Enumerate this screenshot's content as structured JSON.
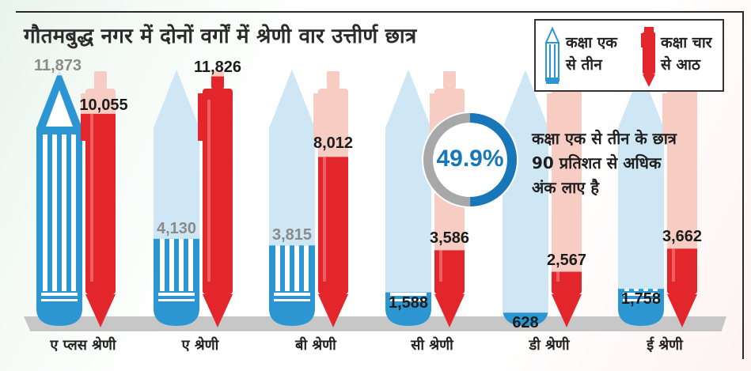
{
  "title": "गौतमबुद्ध नगर में दोनों वर्गों में श्रेणी वार उत्तीर्ण छात्र",
  "legend": {
    "pencil_label_line1": "कक्षा एक",
    "pencil_label_line2": "से तीन",
    "pen_label_line1": "कक्षा चार",
    "pen_label_line2": "से आठ"
  },
  "highlight": {
    "percent_text": "49.9%",
    "percent_value": 49.9,
    "note_line1": "कक्षा एक से तीन के छात्र",
    "note_line2": "90 प्रतिशत से अधिक",
    "note_line3": "अंक लाए है"
  },
  "colors": {
    "pencil_blue": "#2c96d2",
    "pencil_light": "#cfe6f4",
    "pen_red": "#e3262c",
    "pen_light": "#f7cdc3",
    "floor": "#c7c7c7",
    "donut_blue": "#1877b8",
    "donut_gray": "#a8a8a8"
  },
  "chart_data": {
    "type": "bar",
    "title": "गौतमबुद्ध नगर में दोनों वर्गों में श्रेणी वार उत्तीर्ण छात्र",
    "categories": [
      "ए प्लस श्रेणी",
      "ए श्रेणी",
      "बी श्रेणी",
      "सी श्रेणी",
      "डी श्रेणी",
      "ई श्रेणी"
    ],
    "series": [
      {
        "name": "कक्षा एक से तीन",
        "values": [
          11873,
          4130,
          3815,
          1588,
          628,
          1758
        ],
        "labels": [
          "11,873",
          "4,130",
          "3,815",
          "1,588",
          "628",
          "1,758"
        ],
        "color": "#2c96d2",
        "glyph": "pencil-icon"
      },
      {
        "name": "कक्षा चार से आठ",
        "values": [
          10055,
          11826,
          8012,
          3586,
          2567,
          3662
        ],
        "labels": [
          "10,055",
          "11,826",
          "8,012",
          "3,586",
          "2,567",
          "3,662"
        ],
        "color": "#e3262c",
        "glyph": "pen-icon"
      }
    ],
    "ylim": [
      0,
      12000
    ],
    "xlabel": "",
    "ylabel": "",
    "grid": false,
    "legend_position": "top-right"
  }
}
